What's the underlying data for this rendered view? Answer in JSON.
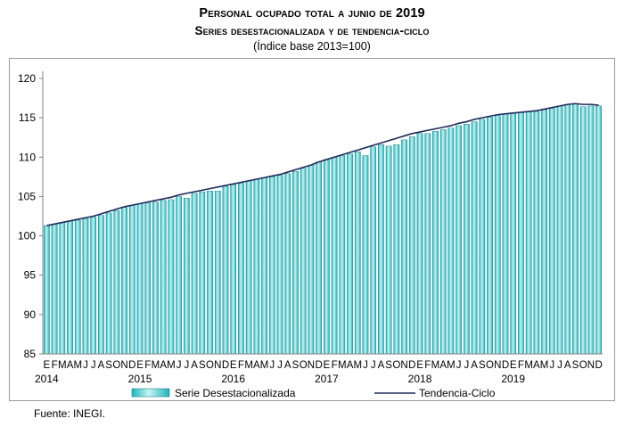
{
  "title_line1": "Personal ocupado total a junio de 2019",
  "title_line2": "Series desestacionalizada y de tendencia-ciclo",
  "subtitle": "(Índice base 2013=100)",
  "source": "Fuente: INEGI.",
  "colors": {
    "bar_fill": "#1bb6bd",
    "bar_highlight": "#c8f3f3",
    "bar_edge": "#0a6f74",
    "trend_line": "#1f2a5c",
    "axis": "#808080"
  },
  "chart_data": {
    "type": "bar",
    "title": "Personal ocupado total a junio de 2019",
    "subtitle": "(Índice base 2013=100)",
    "xlabel": "",
    "ylabel": "",
    "ylim": [
      85,
      120
    ],
    "yticks": [
      85,
      90,
      95,
      100,
      105,
      110,
      115,
      120
    ],
    "grid": false,
    "legend_position": "bottom",
    "month_labels": [
      "E",
      "F",
      "M",
      "A",
      "M",
      "J",
      "J",
      "A",
      "S",
      "O",
      "N",
      "D"
    ],
    "year_labels": [
      "2014",
      "2015",
      "2016",
      "2017",
      "2018",
      "2019"
    ],
    "series": [
      {
        "name": "Serie Desestacionalizada",
        "kind": "bar",
        "values": [
          101.3,
          101.5,
          101.7,
          101.9,
          102.0,
          102.2,
          102.4,
          102.6,
          102.9,
          103.2,
          103.6,
          103.9,
          104.1,
          104.2,
          104.3,
          104.5,
          104.6,
          105.0,
          104.8,
          105.4,
          105.6,
          105.7,
          105.7,
          106.3,
          106.5,
          106.7,
          107.0,
          107.2,
          107.4,
          107.5,
          107.7,
          107.9,
          108.2,
          108.6,
          109.0,
          109.4,
          109.7,
          110.0,
          110.2,
          110.4,
          110.7,
          110.2,
          111.3,
          111.6,
          111.4,
          111.6,
          112.2,
          112.6,
          113.0,
          113.0,
          113.3,
          113.5,
          113.7,
          114.0,
          114.2,
          114.5,
          114.8,
          115.1,
          115.3,
          115.5,
          115.6,
          115.7,
          115.8,
          115.8,
          116.0,
          116.2,
          116.5,
          116.7,
          116.8,
          116.4,
          116.5,
          116.5
        ]
      },
      {
        "name": "Tendencia-Ciclo",
        "kind": "line",
        "values": [
          101.3,
          101.5,
          101.7,
          101.9,
          102.1,
          102.3,
          102.5,
          102.8,
          103.1,
          103.4,
          103.7,
          103.9,
          104.1,
          104.3,
          104.5,
          104.7,
          104.9,
          105.2,
          105.4,
          105.6,
          105.8,
          106.0,
          106.2,
          106.4,
          106.6,
          106.8,
          107.0,
          107.2,
          107.4,
          107.6,
          107.8,
          108.1,
          108.4,
          108.7,
          109.0,
          109.4,
          109.7,
          110.0,
          110.3,
          110.6,
          110.9,
          111.2,
          111.5,
          111.8,
          112.1,
          112.4,
          112.7,
          113.0,
          113.2,
          113.4,
          113.6,
          113.8,
          114.0,
          114.3,
          114.5,
          114.8,
          115.0,
          115.2,
          115.4,
          115.5,
          115.6,
          115.7,
          115.8,
          115.9,
          116.1,
          116.3,
          116.5,
          116.7,
          116.8,
          116.7,
          116.7,
          116.6
        ]
      }
    ]
  }
}
